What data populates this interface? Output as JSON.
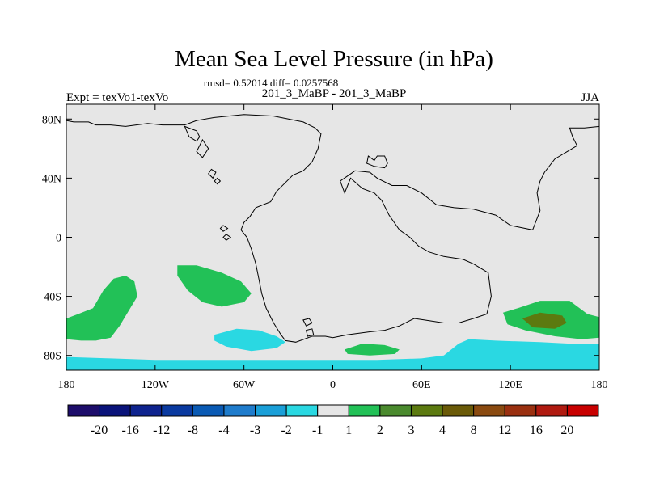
{
  "chart_data": {
    "type": "heatmap",
    "title": "Mean Sea Level Pressure (in hPa)",
    "subtitle": "rmsd= 0.52014 diff= 0.0257568",
    "left_label": "Expt = texVo1-texVo",
    "center_label": "201_3_MaBP - 201_3_MaBP",
    "right_label": "JJA",
    "lon_range": [
      -180,
      180
    ],
    "lat_range": [
      -90,
      90
    ],
    "x_ticks": [
      {
        "lon": -180,
        "label": "180"
      },
      {
        "lon": -120,
        "label": "120W"
      },
      {
        "lon": -60,
        "label": "60W"
      },
      {
        "lon": 0,
        "label": "0"
      },
      {
        "lon": 60,
        "label": "60E"
      },
      {
        "lon": 120,
        "label": "120E"
      },
      {
        "lon": 180,
        "label": "180"
      }
    ],
    "y_ticks": [
      {
        "lat": 80,
        "label": "80N"
      },
      {
        "lat": 40,
        "label": "40N"
      },
      {
        "lat": 0,
        "label": "0"
      },
      {
        "lat": -40,
        "label": "40S"
      },
      {
        "lat": -80,
        "label": "80S"
      }
    ],
    "colorbar": {
      "colors": [
        "#1d0d6b",
        "#0a137a",
        "#0e238e",
        "#0a3aa0",
        "#0a5ab4",
        "#1f7ccc",
        "#1a9fd8",
        "#2ad8e2",
        "#e6e6e6",
        "#22c157",
        "#4a8a2e",
        "#5c7a10",
        "#6a5a08",
        "#8a4a10",
        "#9a3010",
        "#b01a10",
        "#c80000"
      ],
      "labels": [
        "-20",
        "-16",
        "-12",
        "-8",
        "-4",
        "-3",
        "-2",
        "-1",
        "1",
        "2",
        "3",
        "4",
        "8",
        "12",
        "16",
        "20"
      ]
    },
    "fills": [
      {
        "name": "south-pacific-positive",
        "level": "1 to 2",
        "color": "#22c157",
        "points": [
          [
            -180,
            -55
          ],
          [
            -172,
            -52
          ],
          [
            -162,
            -48
          ],
          [
            -155,
            -36
          ],
          [
            -148,
            -28
          ],
          [
            -140,
            -26
          ],
          [
            -134,
            -30
          ],
          [
            -132,
            -40
          ],
          [
            -138,
            -50
          ],
          [
            -144,
            -60
          ],
          [
            -150,
            -68
          ],
          [
            -160,
            -70
          ],
          [
            -170,
            -70
          ],
          [
            -180,
            -69
          ]
        ]
      },
      {
        "name": "south-atlantic-west-positive",
        "level": "1 to 2",
        "color": "#22c157",
        "points": [
          [
            -105,
            -19
          ],
          [
            -92,
            -19
          ],
          [
            -75,
            -24
          ],
          [
            -62,
            -30
          ],
          [
            -55,
            -38
          ],
          [
            -60,
            -44
          ],
          [
            -75,
            -47
          ],
          [
            -88,
            -44
          ],
          [
            -98,
            -36
          ],
          [
            -105,
            -26
          ]
        ]
      },
      {
        "name": "weddell-negative",
        "level": "-2 to -1",
        "color": "#2ad8e2",
        "points": [
          [
            -80,
            -66
          ],
          [
            -65,
            -62
          ],
          [
            -50,
            -63
          ],
          [
            -38,
            -67
          ],
          [
            -32,
            -71
          ],
          [
            -38,
            -75
          ],
          [
            -55,
            -77
          ],
          [
            -72,
            -74
          ],
          [
            -80,
            -70
          ]
        ]
      },
      {
        "name": "south-atlantic-east-positive",
        "level": "1 to 2",
        "color": "#22c157",
        "points": [
          [
            8,
            -76
          ],
          [
            20,
            -72
          ],
          [
            35,
            -73
          ],
          [
            45,
            -76
          ],
          [
            42,
            -79
          ],
          [
            25,
            -80
          ],
          [
            10,
            -79
          ]
        ]
      },
      {
        "name": "south-indian-positive",
        "level": "1 to 2",
        "color": "#22c157",
        "points": [
          [
            115,
            -51
          ],
          [
            125,
            -48
          ],
          [
            140,
            -43
          ],
          [
            160,
            -43
          ],
          [
            172,
            -52
          ],
          [
            180,
            -54
          ],
          [
            180,
            -68
          ],
          [
            168,
            -69
          ],
          [
            150,
            -67
          ],
          [
            130,
            -63
          ],
          [
            118,
            -59
          ]
        ]
      },
      {
        "name": "south-indian-core",
        "level": "3 to 4",
        "color": "#5c7a10",
        "points": [
          [
            128,
            -55
          ],
          [
            140,
            -51
          ],
          [
            155,
            -53
          ],
          [
            158,
            -58
          ],
          [
            150,
            -62
          ],
          [
            135,
            -61
          ]
        ]
      },
      {
        "name": "antarctic-negative",
        "level": "-2 to -1",
        "color": "#2ad8e2",
        "points": [
          [
            -180,
            -81
          ],
          [
            -150,
            -82
          ],
          [
            -120,
            -83
          ],
          [
            -90,
            -83
          ],
          [
            -60,
            -83
          ],
          [
            -30,
            -83
          ],
          [
            0,
            -83
          ],
          [
            30,
            -83
          ],
          [
            60,
            -82
          ],
          [
            75,
            -80
          ],
          [
            85,
            -72
          ],
          [
            92,
            -69
          ],
          [
            110,
            -70
          ],
          [
            140,
            -71
          ],
          [
            160,
            -72
          ],
          [
            180,
            -72
          ],
          [
            180,
            -90
          ],
          [
            -180,
            -90
          ]
        ]
      }
    ],
    "coastlines": [
      {
        "name": "northern-continent-outline",
        "points": [
          [
            -180,
            79
          ],
          [
            -175,
            78
          ],
          [
            -165,
            78
          ],
          [
            -160,
            76
          ],
          [
            -150,
            76
          ],
          [
            -140,
            75
          ],
          [
            -125,
            77
          ],
          [
            -115,
            76
          ],
          [
            -100,
            76
          ],
          [
            -92,
            79
          ],
          [
            -80,
            81
          ],
          [
            -60,
            83
          ],
          [
            -40,
            82
          ],
          [
            -30,
            80
          ],
          [
            -20,
            78
          ],
          [
            -12,
            74
          ],
          [
            -8,
            70
          ],
          [
            -10,
            60
          ],
          [
            -14,
            51
          ],
          [
            -20,
            45
          ],
          [
            -27,
            42
          ],
          [
            -33,
            36
          ],
          [
            -38,
            31
          ],
          [
            -42,
            24
          ],
          [
            -52,
            20
          ],
          [
            -56,
            14
          ],
          [
            -60,
            10
          ],
          [
            -62,
            5
          ],
          [
            -58,
            0
          ],
          [
            -55,
            -8
          ],
          [
            -52,
            -18
          ],
          [
            -50,
            -28
          ],
          [
            -48,
            -38
          ],
          [
            -45,
            -48
          ],
          [
            -40,
            -58
          ],
          [
            -35,
            -66
          ],
          [
            -32,
            -70
          ],
          [
            -25,
            -71
          ],
          [
            -14,
            -67
          ],
          [
            -5,
            -67
          ],
          [
            0,
            -68
          ],
          [
            10,
            -66
          ],
          [
            25,
            -64
          ],
          [
            35,
            -63
          ],
          [
            45,
            -60
          ],
          [
            55,
            -55
          ],
          [
            62,
            -56
          ],
          [
            75,
            -58
          ],
          [
            85,
            -58
          ],
          [
            95,
            -55
          ],
          [
            104,
            -52
          ],
          [
            107,
            -40
          ],
          [
            105,
            -24
          ],
          [
            95,
            -18
          ],
          [
            88,
            -15
          ],
          [
            75,
            -13
          ],
          [
            65,
            -10
          ],
          [
            58,
            -6
          ],
          [
            52,
            0
          ],
          [
            45,
            5
          ],
          [
            38,
            15
          ],
          [
            33,
            25
          ],
          [
            28,
            30
          ],
          [
            20,
            33
          ],
          [
            12,
            40
          ],
          [
            8,
            30
          ],
          [
            5,
            38
          ],
          [
            15,
            45
          ],
          [
            25,
            44
          ],
          [
            30,
            40
          ],
          [
            40,
            35
          ],
          [
            50,
            35
          ],
          [
            60,
            30
          ],
          [
            70,
            22
          ],
          [
            82,
            20
          ],
          [
            95,
            19
          ],
          [
            110,
            15
          ],
          [
            120,
            8
          ],
          [
            135,
            5
          ],
          [
            140,
            18
          ],
          [
            138,
            30
          ],
          [
            140,
            38
          ],
          [
            143,
            44
          ],
          [
            150,
            53
          ],
          [
            160,
            59
          ],
          [
            165,
            62
          ],
          [
            162,
            68
          ],
          [
            160,
            74
          ],
          [
            170,
            74
          ],
          [
            180,
            75
          ]
        ],
        "closed": false
      },
      {
        "name": "inner-coast-island",
        "points": [
          [
            -100,
            75
          ],
          [
            -92,
            72
          ],
          [
            -90,
            68
          ],
          [
            -92,
            65
          ],
          [
            -97,
            68
          ]
        ],
        "closed": true
      },
      {
        "name": "greenland-island",
        "points": [
          [
            -88,
            66
          ],
          [
            -84,
            60
          ],
          [
            -88,
            54
          ],
          [
            -92,
            58
          ]
        ],
        "closed": true
      },
      {
        "name": "small-island-west",
        "points": [
          [
            -82,
            46
          ],
          [
            -79,
            44
          ],
          [
            -81,
            40
          ],
          [
            -84,
            43
          ]
        ],
        "closed": true
      },
      {
        "name": "small-island-west-2",
        "points": [
          [
            -78,
            40
          ],
          [
            -76,
            38
          ],
          [
            -78,
            36
          ],
          [
            -80,
            38
          ]
        ],
        "closed": true
      },
      {
        "name": "small-island-west-3",
        "points": [
          [
            -74,
            8
          ],
          [
            -71,
            6
          ],
          [
            -74,
            4
          ],
          [
            -76,
            6
          ]
        ],
        "closed": true
      },
      {
        "name": "small-island-west-4",
        "points": [
          [
            -72,
            2
          ],
          [
            -69,
            0
          ],
          [
            -72,
            -2
          ],
          [
            -74,
            0
          ]
        ],
        "closed": true
      },
      {
        "name": "kerguelen-island",
        "points": [
          [
            24,
            55
          ],
          [
            28,
            52
          ],
          [
            30,
            55
          ],
          [
            35,
            55
          ],
          [
            37,
            50
          ],
          [
            35,
            47
          ],
          [
            28,
            48
          ],
          [
            23,
            50
          ]
        ],
        "closed": true
      },
      {
        "name": "southern-island-1",
        "points": [
          [
            -20,
            -56
          ],
          [
            -16,
            -55
          ],
          [
            -14,
            -58
          ],
          [
            -18,
            -60
          ]
        ],
        "closed": true
      },
      {
        "name": "southern-island-2",
        "points": [
          [
            -18,
            -63
          ],
          [
            -14,
            -62
          ],
          [
            -13,
            -66
          ],
          [
            -17,
            -67
          ]
        ],
        "closed": true
      }
    ]
  }
}
